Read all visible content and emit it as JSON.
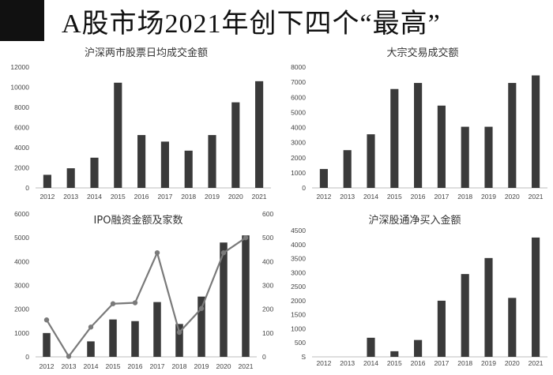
{
  "page": {
    "title": "A股市场2021年创下四个“最高”"
  },
  "chart_data": [
    {
      "type": "bar",
      "title": "沪深两市股票日均成交金额",
      "categories": [
        "2012",
        "2013",
        "2014",
        "2015",
        "2016",
        "2017",
        "2018",
        "2019",
        "2020",
        "2021"
      ],
      "values": [
        1300,
        1950,
        3000,
        10450,
        5250,
        4600,
        3700,
        5250,
        8500,
        10600
      ],
      "ylim": [
        0,
        12000
      ],
      "yticks": [
        "0",
        "2000",
        "4000",
        "6000",
        "8000",
        "10000",
        "12000"
      ],
      "bar_color": "#3a3a3a",
      "grid": false
    },
    {
      "type": "bar",
      "title": "大宗交易成交额",
      "categories": [
        "2012",
        "2013",
        "2014",
        "2015",
        "2016",
        "2017",
        "2018",
        "2019",
        "2020",
        "2021"
      ],
      "values": [
        1250,
        2500,
        3550,
        6550,
        6950,
        5450,
        4050,
        4050,
        6950,
        7450
      ],
      "ylim": [
        0,
        8000
      ],
      "yticks": [
        "0",
        "1000",
        "2000",
        "3000",
        "4000",
        "5000",
        "6000",
        "7000",
        "8000"
      ],
      "bar_color": "#3a3a3a",
      "grid": false
    },
    {
      "type": "bar",
      "title": "IPO融资金额及家数",
      "categories": [
        "2012",
        "2013",
        "2014",
        "2015",
        "2016",
        "2017",
        "2018",
        "2019",
        "2020",
        "2021"
      ],
      "series": [
        {
          "type": "bar",
          "axis": "left",
          "values": [
            1000,
            0,
            650,
            1570,
            1500,
            2300,
            1380,
            2530,
            4800,
            5100
          ]
        },
        {
          "type": "line",
          "axis": "right",
          "values": [
            155,
            2,
            125,
            223,
            227,
            437,
            103,
            203,
            437,
            500
          ]
        }
      ],
      "ylim": [
        0,
        6000
      ],
      "yticks": [
        "0",
        "1000",
        "2000",
        "3000",
        "4000",
        "5000",
        "6000"
      ],
      "y2lim": [
        0,
        600
      ],
      "y2ticks": [
        "0",
        "100",
        "200",
        "300",
        "400",
        "500",
        "600"
      ],
      "bar_color": "#3a3a3a",
      "line_color": "#7a7a7a",
      "grid": false
    },
    {
      "type": "bar",
      "title": "沪深股通净买入金额",
      "categories": [
        "2012",
        "2013",
        "2014",
        "2015",
        "2016",
        "2017",
        "2018",
        "2019",
        "2020",
        "2021"
      ],
      "values": [
        0,
        0,
        680,
        200,
        600,
        2000,
        2950,
        3520,
        2100,
        4250
      ],
      "ylim": [
        0,
        4500
      ],
      "yticks": [
        "S",
        "500",
        "1000",
        "1500",
        "2000",
        "2500",
        "3000",
        "3500",
        "4000",
        "4500"
      ],
      "bar_color": "#3a3a3a",
      "grid": false
    }
  ]
}
